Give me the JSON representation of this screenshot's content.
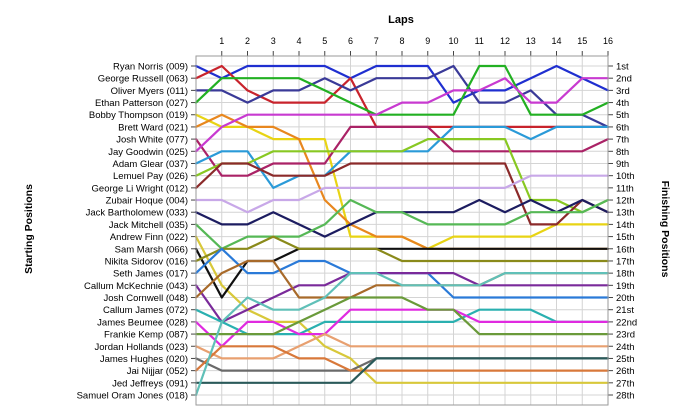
{
  "chart_data": {
    "type": "line",
    "subtype": "lap-position bump chart",
    "title": "Laps",
    "y_left_title": "Starting Positions",
    "y_right_title": "Finishing Positions",
    "laps": [
      1,
      2,
      3,
      4,
      5,
      6,
      7,
      8,
      9,
      10,
      11,
      12,
      13,
      14,
      15,
      16
    ],
    "y_direction": "position 1 at top",
    "grid": true,
    "drivers": [
      "Ryan Norris (009)",
      "George Russell (063)",
      "Oliver Myers (011)",
      "Ethan Patterson (027)",
      "Bobby Thompson (019)",
      "Brett Ward (021)",
      "Josh White (077)",
      "Jay Goodwin (025)",
      "Adam Glear (037)",
      "Lemuel Pay (026)",
      "George Li Wright (012)",
      "Zubair Hoque (004)",
      "Jack Bartholomew (033)",
      "Jack Mitchell (035)",
      "Andrew Finn (022)",
      "Sam Marsh (066)",
      "Nikita Sidorov (016)",
      "Seth James (017)",
      "Callum McKechnie (043)",
      "Josh Cornwell (048)",
      "Callum James (072)",
      "James Beumee (028)",
      "Frankie Kemp (087)",
      "Jordan Hollands (023)",
      "James Hughes (020)",
      "Jai Nijjar (052)",
      "Jed Jeffreys (091)",
      "Samuel Oram Jones (018)"
    ],
    "finishing_positions": [
      "1st",
      "2nd",
      "3rd",
      "4th",
      "5th",
      "6th",
      "7th",
      "8th",
      "9th",
      "10th",
      "11th",
      "12th",
      "13th",
      "14th",
      "15th",
      "16th",
      "17th",
      "18th",
      "19th",
      "20th",
      "21st",
      "22nd",
      "23rd",
      "24th",
      "25th",
      "26th",
      "27th",
      "28th"
    ],
    "series": [
      {
        "color": "#1f2fd0",
        "positions": [
          1,
          2,
          1,
          1,
          1,
          1,
          2,
          1,
          1,
          1,
          4,
          3,
          3,
          2,
          1,
          2,
          3
        ]
      },
      {
        "color": "#c8232c",
        "positions": [
          2,
          1,
          3,
          4,
          4,
          4,
          2,
          6,
          6,
          6,
          6,
          6,
          6,
          6,
          6,
          6,
          6
        ]
      },
      {
        "color": "#3a3a98",
        "positions": [
          3,
          3,
          4,
          3,
          3,
          2,
          3,
          2,
          2,
          2,
          1,
          4,
          4,
          3,
          5,
          5,
          6
        ]
      },
      {
        "color": "#22b022",
        "positions": [
          4,
          2,
          2,
          2,
          2,
          3,
          4,
          5,
          5,
          5,
          5,
          1,
          1,
          5,
          5,
          5,
          4
        ]
      },
      {
        "color": "#e8d414",
        "positions": [
          5,
          6,
          6,
          7,
          7,
          7,
          15,
          15,
          15,
          16,
          15,
          15,
          15,
          15,
          14,
          14,
          14
        ]
      },
      {
        "color": "#e8871e",
        "positions": [
          6,
          5,
          6,
          6,
          7,
          12,
          14,
          15,
          15,
          16,
          16,
          16,
          16,
          16,
          16,
          16,
          16
        ]
      },
      {
        "color": "#aa2266",
        "positions": [
          7,
          10,
          10,
          9,
          9,
          9,
          6,
          6,
          6,
          6,
          8,
          8,
          8,
          8,
          8,
          8,
          7
        ]
      },
      {
        "color": "#c83ad0",
        "positions": [
          8,
          6,
          5,
          5,
          5,
          5,
          5,
          5,
          4,
          4,
          3,
          3,
          2,
          4,
          4,
          2,
          2
        ]
      },
      {
        "color": "#2a9ad8",
        "positions": [
          9,
          8,
          8,
          11,
          10,
          10,
          8,
          8,
          8,
          8,
          6,
          6,
          6,
          7,
          6,
          6,
          6
        ]
      },
      {
        "color": "#88c822",
        "positions": [
          10,
          9,
          9,
          8,
          8,
          8,
          8,
          8,
          8,
          7,
          7,
          7,
          7,
          12,
          12,
          13,
          12
        ]
      },
      {
        "color": "#8b2a2a",
        "positions": [
          11,
          9,
          9,
          10,
          10,
          10,
          9,
          9,
          9,
          9,
          9,
          9,
          9,
          14,
          14,
          12,
          13
        ]
      },
      {
        "color": "#c8a8e8",
        "positions": [
          12,
          12,
          13,
          12,
          12,
          11,
          11,
          11,
          11,
          11,
          11,
          11,
          11,
          10,
          10,
          10,
          10
        ]
      },
      {
        "color": "#1c1c60",
        "positions": [
          13,
          14,
          14,
          13,
          14,
          15,
          14,
          13,
          13,
          13,
          13,
          12,
          13,
          12,
          13,
          12,
          13
        ]
      },
      {
        "color": "#56b856",
        "positions": [
          14,
          16,
          15,
          15,
          15,
          14,
          12,
          13,
          13,
          14,
          14,
          14,
          14,
          13,
          13,
          13,
          12
        ]
      },
      {
        "color": "#d8c83a",
        "positions": [
          15,
          19,
          21,
          22,
          22,
          24,
          25,
          27,
          27,
          27,
          27,
          27,
          27,
          27,
          27,
          27,
          27
        ]
      },
      {
        "color": "#101010",
        "positions": [
          16,
          20,
          17,
          17,
          16,
          16,
          16,
          16,
          16,
          16,
          16,
          16,
          16,
          16,
          16,
          16,
          16
        ]
      },
      {
        "color": "#8a8a1a",
        "positions": [
          17,
          16,
          16,
          15,
          16,
          16,
          16,
          16,
          17,
          17,
          17,
          17,
          17,
          17,
          17,
          17,
          17
        ]
      },
      {
        "color": "#2a7ad8",
        "positions": [
          18,
          16,
          18,
          18,
          17,
          17,
          18,
          18,
          18,
          18,
          20,
          20,
          20,
          20,
          20,
          20,
          20
        ]
      },
      {
        "color": "#7a2a9a",
        "positions": [
          19,
          22,
          21,
          20,
          19,
          19,
          18,
          18,
          18,
          18,
          18,
          19,
          19,
          19,
          19,
          19,
          19
        ]
      },
      {
        "color": "#a86a2a",
        "positions": [
          20,
          18,
          17,
          17,
          20,
          20,
          20,
          19,
          19,
          19,
          19,
          19,
          18,
          18,
          18,
          18,
          18
        ]
      },
      {
        "color": "#2ab0b0",
        "positions": [
          21,
          22,
          23,
          23,
          23,
          22,
          22,
          22,
          22,
          22,
          22,
          21,
          21,
          21,
          22,
          22,
          22
        ]
      },
      {
        "color": "#e02ae0",
        "positions": [
          22,
          24,
          22,
          22,
          23,
          23,
          21,
          21,
          21,
          21,
          21,
          22,
          22,
          22,
          22,
          22,
          22
        ]
      },
      {
        "color": "#6a9a3a",
        "positions": [
          23,
          23,
          23,
          23,
          22,
          21,
          20,
          20,
          20,
          21,
          21,
          23,
          23,
          23,
          23,
          23,
          23
        ]
      },
      {
        "color": "#e8a070",
        "positions": [
          24,
          25,
          25,
          25,
          24,
          23,
          24,
          24,
          24,
          24,
          24,
          24,
          24,
          24,
          24,
          24,
          24
        ]
      },
      {
        "color": "#6a6a6a",
        "positions": [
          25,
          26,
          26,
          26,
          26,
          26,
          26,
          25,
          25,
          25,
          25,
          25,
          25,
          25,
          25,
          25,
          25
        ]
      },
      {
        "color": "#d8783a",
        "positions": [
          26,
          24,
          24,
          24,
          25,
          25,
          26,
          26,
          26,
          26,
          26,
          26,
          26,
          26,
          26,
          26,
          26
        ]
      },
      {
        "color": "#2a5a5a",
        "positions": [
          27,
          27,
          27,
          27,
          27,
          27,
          27,
          25,
          25,
          25,
          25,
          25,
          25,
          25,
          25,
          25,
          25
        ]
      },
      {
        "color": "#60c0b8",
        "positions": [
          28,
          22,
          20,
          21,
          21,
          20,
          18,
          18,
          19,
          19,
          19,
          19,
          18,
          18,
          18,
          18,
          18
        ]
      }
    ]
  }
}
